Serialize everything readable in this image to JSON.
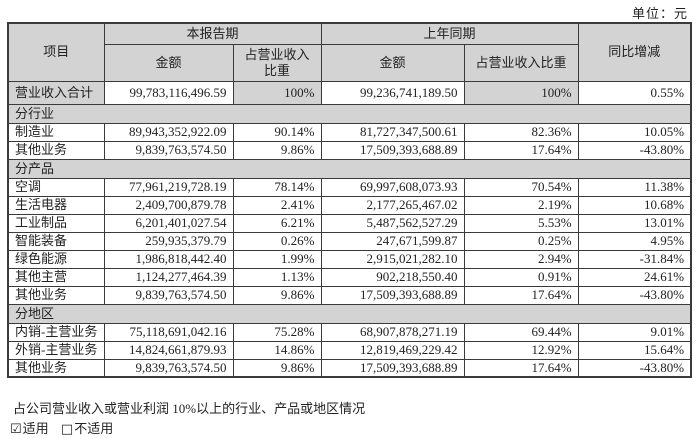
{
  "unit_label": "单位：元",
  "table": {
    "header": {
      "item": "项目",
      "current_period": "本报告期",
      "prior_period": "上年同期",
      "yoy": "同比增减",
      "amount": "金额",
      "pct_of_revenue": "占营业收入比重"
    },
    "rows": [
      {
        "type": "total",
        "label": "营业收入合计",
        "cur_amount": "99,783,116,496.59",
        "cur_pct": "100%",
        "prev_amount": "99,236,741,189.50",
        "prev_pct": "100%",
        "yoy": "0.55%"
      },
      {
        "type": "section",
        "label": "分行业"
      },
      {
        "type": "data",
        "label": "制造业",
        "cur_amount": "89,943,352,922.09",
        "cur_pct": "90.14%",
        "prev_amount": "81,727,347,500.61",
        "prev_pct": "82.36%",
        "yoy": "10.05%"
      },
      {
        "type": "data",
        "label": "其他业务",
        "cur_amount": "9,839,763,574.50",
        "cur_pct": "9.86%",
        "prev_amount": "17,509,393,688.89",
        "prev_pct": "17.64%",
        "yoy": "-43.80%"
      },
      {
        "type": "section",
        "label": "分产品"
      },
      {
        "type": "data",
        "label": "空调",
        "cur_amount": "77,961,219,728.19",
        "cur_pct": "78.14%",
        "prev_amount": "69,997,608,073.93",
        "prev_pct": "70.54%",
        "yoy": "11.38%"
      },
      {
        "type": "data",
        "label": "生活电器",
        "cur_amount": "2,409,700,879.78",
        "cur_pct": "2.41%",
        "prev_amount": "2,177,265,467.02",
        "prev_pct": "2.19%",
        "yoy": "10.68%"
      },
      {
        "type": "data",
        "label": "工业制品",
        "cur_amount": "6,201,401,027.54",
        "cur_pct": "6.21%",
        "prev_amount": "5,487,562,527.29",
        "prev_pct": "5.53%",
        "yoy": "13.01%"
      },
      {
        "type": "data",
        "label": "智能装备",
        "cur_amount": "259,935,379.79",
        "cur_pct": "0.26%",
        "prev_amount": "247,671,599.87",
        "prev_pct": "0.25%",
        "yoy": "4.95%"
      },
      {
        "type": "data",
        "label": "绿色能源",
        "cur_amount": "1,986,818,442.40",
        "cur_pct": "1.99%",
        "prev_amount": "2,915,021,282.10",
        "prev_pct": "2.94%",
        "yoy": "-31.84%"
      },
      {
        "type": "data",
        "label": "其他主营",
        "cur_amount": "1,124,277,464.39",
        "cur_pct": "1.13%",
        "prev_amount": "902,218,550.40",
        "prev_pct": "0.91%",
        "yoy": "24.61%"
      },
      {
        "type": "data",
        "label": "其他业务",
        "cur_amount": "9,839,763,574.50",
        "cur_pct": "9.86%",
        "prev_amount": "17,509,393,688.89",
        "prev_pct": "17.64%",
        "yoy": "-43.80%"
      },
      {
        "type": "section",
        "label": "分地区"
      },
      {
        "type": "data",
        "label": "内销-主营业务",
        "cur_amount": "75,118,691,042.16",
        "cur_pct": "75.28%",
        "prev_amount": "68,907,878,271.19",
        "prev_pct": "69.44%",
        "yoy": "9.01%"
      },
      {
        "type": "data",
        "label": "外销-主营业务",
        "cur_amount": "14,824,661,879.93",
        "cur_pct": "14.86%",
        "prev_amount": "12,819,469,229.42",
        "prev_pct": "12.92%",
        "yoy": "15.64%"
      },
      {
        "type": "data",
        "label": "其他业务",
        "cur_amount": "9,839,763,574.50",
        "cur_pct": "9.86%",
        "prev_amount": "17,509,393,688.89",
        "prev_pct": "17.64%",
        "yoy": "-43.80%"
      }
    ]
  },
  "footer": {
    "note": "占公司营业收入或营业利润 10%以上的行业、产品或地区情况",
    "applicable_checkbox": "☑",
    "applicable_label": "适用",
    "not_applicable_checkbox": "□",
    "not_applicable_label": "不适用"
  },
  "colors": {
    "shading": "#d3d3d3",
    "border": "#3a3a3a",
    "text": "#222222"
  }
}
